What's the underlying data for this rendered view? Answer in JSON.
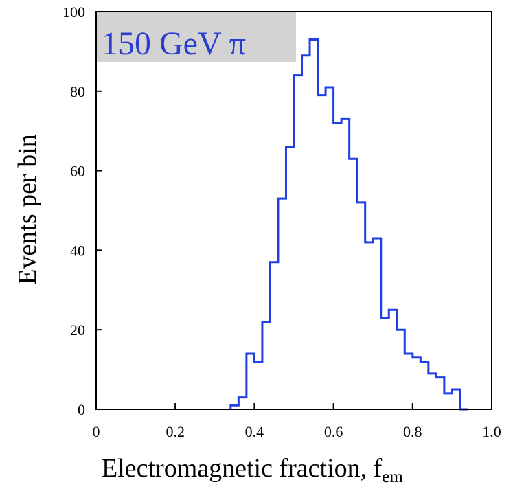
{
  "chart_data": {
    "type": "histogram",
    "title": "",
    "annotation": "150 GeV π",
    "xlabel": "Electromagnetic fraction, f",
    "xlabel_subscript": "em",
    "ylabel": "Events per bin",
    "xlim": [
      0,
      1.0
    ],
    "ylim": [
      0,
      100
    ],
    "x_tick_labels": [
      "0",
      "0.2",
      "0.4",
      "0.6",
      "0.8",
      "1.0"
    ],
    "x_ticks": [
      0,
      0.2,
      0.4,
      0.6,
      0.8,
      1.0
    ],
    "y_tick_labels": [
      "0",
      "20",
      "40",
      "60",
      "80",
      "100"
    ],
    "y_ticks": [
      0,
      20,
      40,
      60,
      80,
      100
    ],
    "bin_width": 0.02,
    "bin_edges_start": 0.34,
    "values": [
      1,
      3,
      14,
      12,
      22,
      37,
      53,
      66,
      84,
      89,
      93,
      79,
      81,
      72,
      73,
      63,
      52,
      42,
      43,
      23,
      25,
      20,
      14,
      13,
      12,
      9,
      8,
      4,
      5,
      0
    ],
    "grid": false,
    "legend": "none",
    "colors": {
      "series": "#1f3fe6",
      "axes": "#000000",
      "tag_background": "#d3d3d3",
      "tag_text": "#2a3fd0"
    }
  }
}
